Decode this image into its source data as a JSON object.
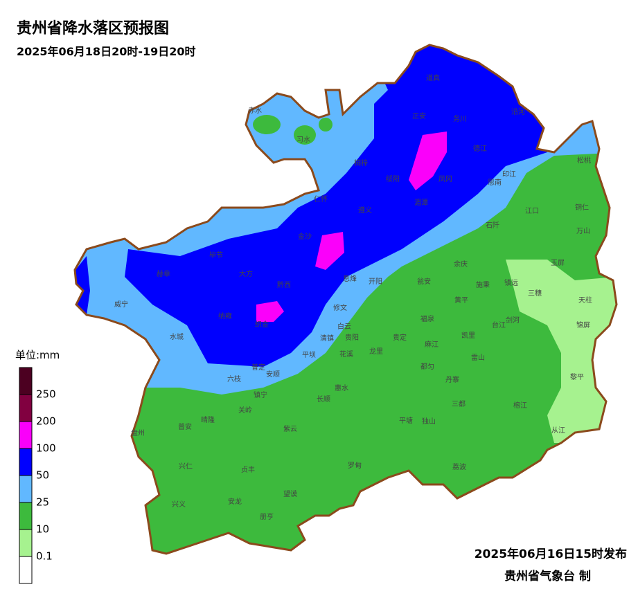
{
  "header": {
    "title": "贵州省降水落区预报图",
    "subtitle": "2025年06月18日20时-19日20时"
  },
  "legend": {
    "unit": "单位:mm",
    "levels": [
      0.1,
      10,
      25,
      50,
      100,
      200,
      250
    ],
    "colors": [
      "#ffffff",
      "#a6f28f",
      "#3dba3d",
      "#61b8ff",
      "#0000fe",
      "#fa00fa",
      "#810040",
      "#4c0021"
    ]
  },
  "places": [
    "赤水",
    "习水",
    "道真",
    "正安",
    "务川",
    "沿河",
    "桐梓",
    "绥阳",
    "凤冈",
    "德江",
    "印江",
    "思南",
    "松桃",
    "仁怀",
    "湄潭",
    "遵义",
    "江口",
    "铜仁",
    "万山",
    "石阡",
    "金沙",
    "毕节",
    "大方",
    "赫章",
    "黔西",
    "息烽",
    "开阳",
    "余庆",
    "施秉",
    "镇远",
    "玉屏",
    "三穗",
    "天柱",
    "瓮安",
    "黄平",
    "威宁",
    "纳雍",
    "织金",
    "修文",
    "福泉",
    "锦屏",
    "剑河",
    "台江",
    "凯里",
    "白云",
    "贵阳",
    "清镇",
    "贵定",
    "麻江",
    "水城",
    "龙里",
    "花溪",
    "平坝",
    "雷山",
    "黎平",
    "普定",
    "安顺",
    "六枝",
    "都匀",
    "丹寨",
    "惠水",
    "长顺",
    "镇宁",
    "三都",
    "榕江",
    "关岭",
    "盘州",
    "普安",
    "晴隆",
    "紫云",
    "平塘",
    "独山",
    "从江",
    "兴仁",
    "贞丰",
    "罗甸",
    "荔波",
    "兴义",
    "安龙",
    "望谟",
    "册亨"
  ],
  "footer": {
    "issued": "2025年06月16日15时发布",
    "agency": "贵州省气象台 制"
  }
}
